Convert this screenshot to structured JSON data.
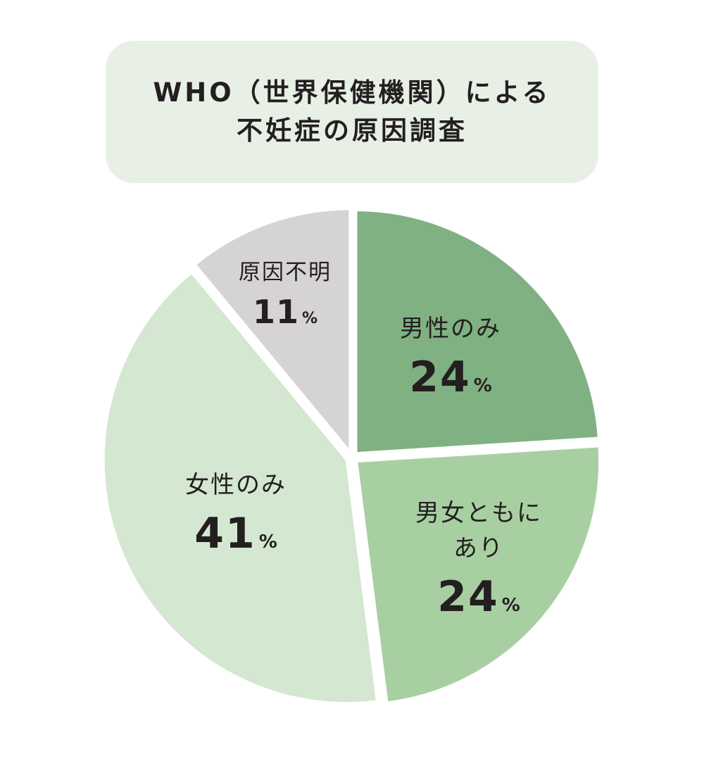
{
  "chart_data": {
    "type": "pie",
    "title_lines": [
      "WHO（世界保健機関）による",
      "不妊症の原因調査"
    ],
    "unit": "%",
    "slices": [
      {
        "label_lines": [
          "男性のみ"
        ],
        "value": 24,
        "color": "#80b182"
      },
      {
        "label_lines": [
          "男女ともに",
          "あり"
        ],
        "value": 24,
        "color": "#a8cfa2"
      },
      {
        "label_lines": [
          "女性のみ"
        ],
        "value": 41,
        "color": "#d4e7d0"
      },
      {
        "label_lines": [
          "原因不明"
        ],
        "value": 11,
        "color": "#d5d3d3"
      }
    ],
    "start": "12 o'clock",
    "direction": "clockwise",
    "separator_color": "#ffffff"
  }
}
